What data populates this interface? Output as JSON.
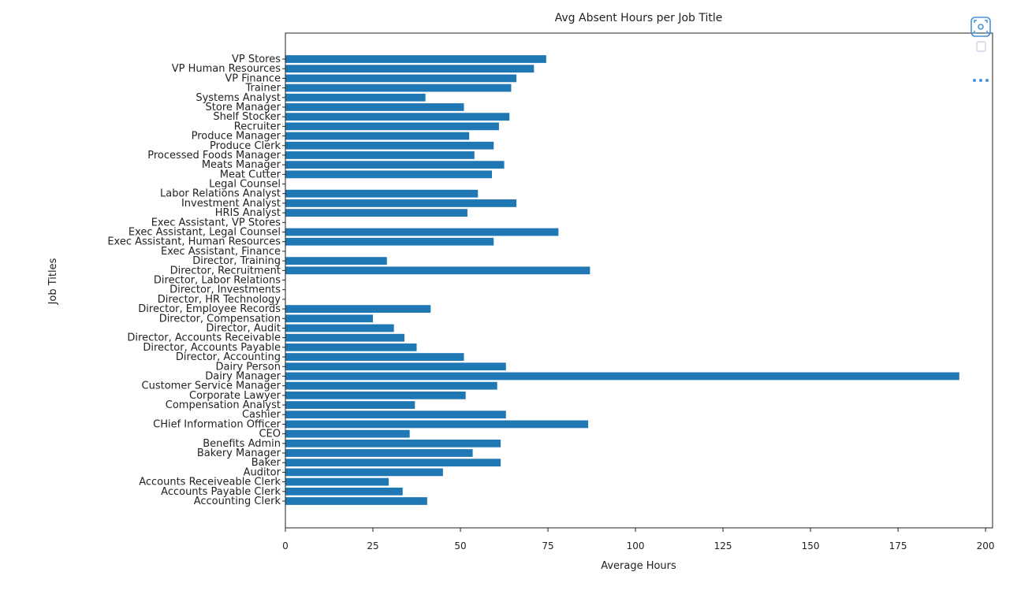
{
  "chart_data": {
    "type": "bar",
    "orientation": "horizontal",
    "title": "Avg Absent Hours per Job Title",
    "xlabel": "Average Hours",
    "ylabel": "Job Titles",
    "xlim": [
      0,
      202
    ],
    "xticks": [
      0,
      25,
      50,
      75,
      100,
      125,
      150,
      175,
      200
    ],
    "grid": false,
    "bar_color": "#1f77b4",
    "categories": [
      "Accounting Clerk",
      "Accounts Payable Clerk",
      "Accounts Receiveable Clerk",
      "Auditor",
      "Baker",
      "Bakery Manager",
      "Benefits Admin",
      "CEO",
      "CHief Information Officer",
      "Cashier",
      "Compensation Analyst",
      "Corporate Lawyer",
      "Customer Service Manager",
      "Dairy Manager",
      "Dairy Person",
      "Director, Accounting",
      "Director, Accounts Payable",
      "Director, Accounts Receivable",
      "Director, Audit",
      "Director, Compensation",
      "Director, Employee Records",
      "Director, HR Technology",
      "Director, Investments",
      "Director, Labor Relations",
      "Director, Recruitment",
      "Director, Training",
      "Exec Assistant, Finance",
      "Exec Assistant, Human Resources",
      "Exec Assistant, Legal Counsel",
      "Exec Assistant, VP Stores",
      "HRIS Analyst",
      "Investment Analyst",
      "Labor Relations Analyst",
      "Legal Counsel",
      "Meat Cutter",
      "Meats Manager",
      "Processed Foods Manager",
      "Produce Clerk",
      "Produce Manager",
      "Recruiter",
      "Shelf Stocker",
      "Store Manager",
      "Systems Analyst",
      "Trainer",
      "VP Finance",
      "VP Human Resources",
      "VP Stores"
    ],
    "values": [
      40.5,
      33.5,
      29.5,
      45,
      61.5,
      53.5,
      61.5,
      35.5,
      86.5,
      63,
      37,
      51.5,
      60.5,
      192.5,
      63,
      51,
      37.5,
      34,
      31,
      25,
      41.5,
      0,
      0,
      0,
      87,
      29,
      0,
      59.5,
      78,
      0,
      52,
      66,
      55,
      0,
      59,
      62.5,
      54,
      59.5,
      52.5,
      61,
      64,
      51,
      40,
      64.5,
      66,
      71,
      74.5
    ]
  },
  "toolbar": {
    "buttons": [
      {
        "name": "camera-icon"
      },
      {
        "name": "copy-icon"
      },
      {
        "name": "more-options-icon"
      }
    ]
  }
}
